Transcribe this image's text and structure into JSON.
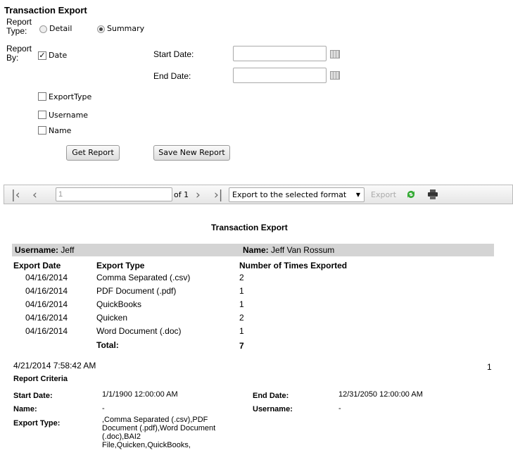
{
  "form": {
    "title": "Transaction Export",
    "report_type_label": "Report Type:",
    "report_type_options": [
      {
        "label": "Detail",
        "selected": false
      },
      {
        "label": "Summary",
        "selected": true
      }
    ],
    "report_by_label": "Report By:",
    "report_by_options": [
      {
        "label": "Date",
        "checked": true
      },
      {
        "label": "ExportType",
        "checked": false
      },
      {
        "label": "Username",
        "checked": false
      },
      {
        "label": "Name",
        "checked": false
      }
    ],
    "start_date_label": "Start Date:",
    "start_date_value": "",
    "end_date_label": "End Date:",
    "end_date_value": "",
    "get_report": "Get Report",
    "save_new_report": "Save New Report"
  },
  "toolbar": {
    "page_value": "1",
    "of_pages": "of 1",
    "format_select": "Export to the selected format",
    "export": "Export",
    "icons": [
      "first-page-icon",
      "prev-page-icon",
      "next-page-icon",
      "last-page-icon",
      "refresh-icon",
      "print-icon"
    ]
  },
  "report": {
    "title": "Transaction Export",
    "username_label": "Username:",
    "username": "Jeff",
    "name_label": "Name:",
    "name": "Jeff Van Rossum",
    "columns": [
      "Export Date",
      "Export Type",
      "Number of Times Exported"
    ],
    "rows": [
      [
        "04/16/2014",
        "Comma Separated (.csv)",
        "2"
      ],
      [
        "04/16/2014",
        "PDF Document (.pdf)",
        "1"
      ],
      [
        "04/16/2014",
        "QuickBooks",
        "1"
      ],
      [
        "04/16/2014",
        "Quicken",
        "2"
      ],
      [
        "04/16/2014",
        "Word Document (.doc)",
        "1"
      ]
    ],
    "total_label": "Total:",
    "total": "7",
    "timestamp": "4/21/2014 7:58:42 AM",
    "page_number": "1",
    "criteria_title": "Report Criteria",
    "criteria": {
      "start_date_label": "Start Date:",
      "start_date": "1/1/1900 12:00:00 AM",
      "end_date_label": "End Date:",
      "end_date": "12/31/2050 12:00:00 AM",
      "name_label": "Name:",
      "name": "-",
      "username_label": "Username:",
      "username": "-",
      "export_type_label": "Export Type:",
      "export_type_lines": [
        ",Comma Separated (.csv),PDF",
        "Document (.pdf),Word Document",
        "(.doc),BAI2",
        "File,Quicken,QuickBooks,"
      ]
    }
  }
}
